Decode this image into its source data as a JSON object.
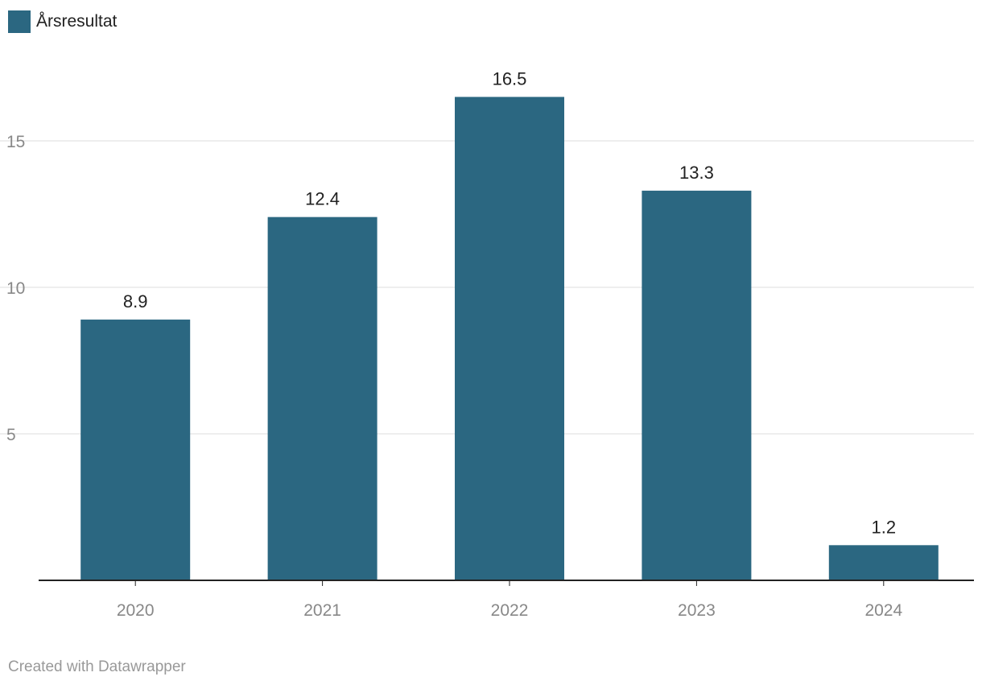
{
  "chart_data": {
    "type": "bar",
    "categories": [
      "2020",
      "2021",
      "2022",
      "2023",
      "2024"
    ],
    "series": [
      {
        "name": "Årsresultat",
        "values": [
          8.9,
          12.4,
          16.5,
          13.3,
          1.2
        ]
      }
    ],
    "value_labels": [
      "8.9",
      "12.4",
      "16.5",
      "13.3",
      "1.2"
    ],
    "y_ticks": [
      5,
      10,
      15
    ],
    "ylim": [
      0,
      18.6
    ],
    "grid": true,
    "legend_position": "top-left",
    "title": "",
    "xlabel": "",
    "ylabel": ""
  },
  "colors": {
    "bar": "#2b6781",
    "grid": "#dddddd",
    "axis": "#222222",
    "tick_label": "#888888",
    "value_label": "#222222"
  },
  "footer": {
    "credit": "Created with Datawrapper"
  }
}
